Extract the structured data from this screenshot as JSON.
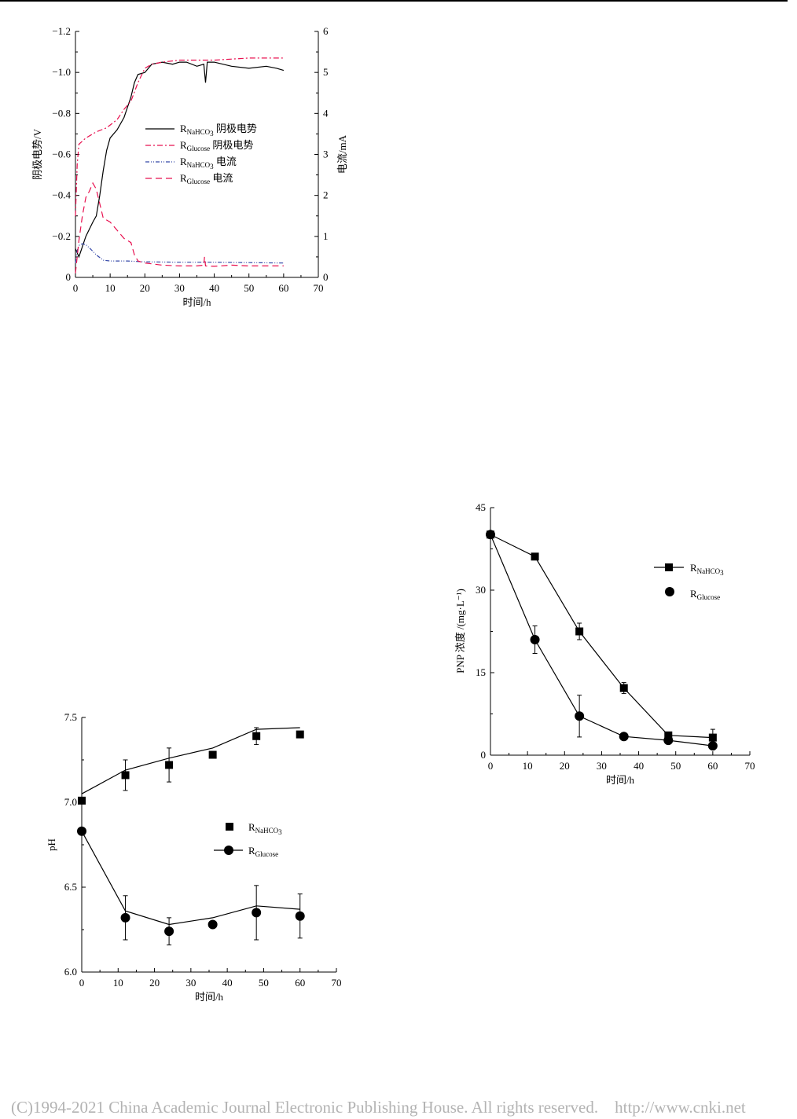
{
  "footer": {
    "copyright": "(C)1994-2021 China Academic Journal Electronic Publishing House. All rights reserved.",
    "url": "http://www.cnki.net"
  },
  "chart_data": [
    {
      "id": "potential_current",
      "type": "line",
      "xlabel": "时间/h",
      "ylabel_left": "阴极电势/V",
      "ylabel_right": "电流/mA",
      "xlim": [
        0,
        70
      ],
      "ylim_left": [
        0,
        -1.2
      ],
      "ylim_right": [
        0,
        6
      ],
      "xticks": [
        "0",
        "10",
        "20",
        "30",
        "40",
        "50",
        "60",
        "70"
      ],
      "yticks_left": [
        "0",
        "−0.2",
        "−0.4",
        "−0.6",
        "−0.8",
        "−1.0",
        "−1.2"
      ],
      "yticks_right": [
        "0",
        "1",
        "2",
        "3",
        "4",
        "5",
        "6"
      ],
      "legend_position": "center-right",
      "series": [
        {
          "name": "RNaHCO3 阴极电势",
          "legend_main": "R",
          "legend_sub": "NaHCO",
          "legend_sub2": "3",
          "legend_tail": " 阴极电势",
          "axis": "left",
          "color": "#000000",
          "dash": "",
          "x": [
            0,
            1,
            3,
            5,
            6,
            7,
            8,
            9,
            10,
            12,
            14,
            16,
            17,
            18,
            20,
            22,
            25,
            28,
            30,
            32,
            35,
            37,
            37.5,
            38,
            40,
            45,
            50,
            55,
            58,
            60
          ],
          "y": [
            -0.14,
            -0.1,
            -0.2,
            -0.27,
            -0.3,
            -0.4,
            -0.52,
            -0.62,
            -0.68,
            -0.72,
            -0.78,
            -0.88,
            -0.95,
            -0.99,
            -1.0,
            -1.04,
            -1.05,
            -1.04,
            -1.05,
            -1.05,
            -1.03,
            -1.04,
            -0.95,
            -1.05,
            -1.05,
            -1.03,
            -1.02,
            -1.03,
            -1.02,
            -1.01
          ]
        },
        {
          "name": "RGlucose 阴极电势",
          "legend_main": "R",
          "legend_sub": "Glucose",
          "legend_sub2": "",
          "legend_tail": " 阴极电势",
          "axis": "left",
          "color": "#e8104f",
          "dash": "7 3 2 3",
          "x": [
            0,
            0.5,
            1,
            3,
            6,
            9,
            12,
            14,
            16,
            18,
            20,
            22,
            25,
            30,
            40,
            50,
            60
          ],
          "y": [
            -0.3,
            -0.55,
            -0.65,
            -0.68,
            -0.71,
            -0.73,
            -0.77,
            -0.82,
            -0.86,
            -0.95,
            -1.02,
            -1.04,
            -1.05,
            -1.06,
            -1.06,
            -1.07,
            -1.07
          ]
        },
        {
          "name": "RNaHCO3 电流",
          "legend_main": "R",
          "legend_sub": "NaHCO",
          "legend_sub2": "3",
          "legend_tail": " 电流",
          "axis": "right",
          "color": "#3347a8",
          "dash": "5 2 1 2 1 2",
          "x": [
            0,
            0.5,
            1,
            2,
            3,
            4,
            6,
            8,
            10,
            15,
            20,
            30,
            40,
            50,
            60
          ],
          "y": [
            0.35,
            0.65,
            0.78,
            0.82,
            0.8,
            0.72,
            0.55,
            0.42,
            0.4,
            0.4,
            0.38,
            0.37,
            0.37,
            0.36,
            0.35
          ]
        },
        {
          "name": "RGlucose 电流",
          "legend_main": "R",
          "legend_sub": "Glucose",
          "legend_sub2": "",
          "legend_tail": " 电流",
          "axis": "right",
          "color": "#e8104f",
          "dash": "8 5",
          "x": [
            0,
            1,
            2,
            3,
            4,
            5,
            6,
            7,
            8,
            10,
            12,
            14,
            16,
            17,
            18,
            20,
            25,
            30,
            35,
            37,
            37.2,
            37.5,
            40,
            45,
            50,
            60
          ],
          "y": [
            0.1,
            0.9,
            1.5,
            1.95,
            2.1,
            2.3,
            2.15,
            1.8,
            1.45,
            1.35,
            1.15,
            0.95,
            0.85,
            0.55,
            0.4,
            0.35,
            0.3,
            0.28,
            0.28,
            0.3,
            0.5,
            0.28,
            0.27,
            0.3,
            0.28,
            0.28
          ]
        }
      ]
    },
    {
      "id": "ph",
      "type": "line",
      "xlabel": "时间/h",
      "ylabel": "pH",
      "xlim": [
        0,
        70
      ],
      "ylim": [
        6.0,
        7.5
      ],
      "xticks": [
        "0",
        "10",
        "20",
        "30",
        "40",
        "50",
        "60",
        "70"
      ],
      "yticks": [
        "6.0",
        "6.5",
        "7.0",
        "7.5"
      ],
      "legend_position": "center-right",
      "series": [
        {
          "name": "RNaHCO3",
          "legend_main": "R",
          "legend_sub": "NaHCO",
          "legend_sub2": "3",
          "marker": "square",
          "x": [
            0,
            12,
            24,
            36,
            48,
            60
          ],
          "y": [
            7.01,
            7.16,
            7.22,
            7.28,
            7.39,
            7.4
          ],
          "err": [
            0.01,
            0.09,
            0.1,
            0.02,
            0.05,
            0.01
          ],
          "fit_x": [
            0,
            12,
            24,
            36,
            48,
            60
          ],
          "fit_y": [
            7.05,
            7.19,
            7.26,
            7.32,
            7.43,
            7.44
          ]
        },
        {
          "name": "RGlucose",
          "legend_main": "R",
          "legend_sub": "Glucose",
          "legend_sub2": "",
          "marker": "circle",
          "x": [
            0,
            12,
            24,
            36,
            48,
            60
          ],
          "y": [
            6.83,
            6.32,
            6.24,
            6.28,
            6.35,
            6.33
          ],
          "err": [
            0.0,
            0.13,
            0.08,
            0.02,
            0.16,
            0.13
          ],
          "fit_x": [
            0,
            12,
            24,
            36,
            48,
            60
          ],
          "fit_y": [
            6.83,
            6.36,
            6.28,
            6.32,
            6.39,
            6.37
          ]
        }
      ]
    },
    {
      "id": "pnp",
      "type": "line",
      "xlabel": "时间/h",
      "ylabel": "PNP 浓度 /(mg·L⁻¹)",
      "xlim": [
        0,
        70
      ],
      "ylim": [
        0,
        45
      ],
      "xticks": [
        "0",
        "10",
        "20",
        "30",
        "40",
        "50",
        "60",
        "70"
      ],
      "yticks": [
        "0",
        "15",
        "30",
        "45"
      ],
      "legend_position": "top-right",
      "series": [
        {
          "name": "RNaHCO3",
          "legend_main": "R",
          "legend_sub": "NaHCO",
          "legend_sub2": "3",
          "marker": "square",
          "x": [
            0,
            12,
            24,
            36,
            48,
            60
          ],
          "y": [
            40.1,
            36.1,
            22.5,
            12.2,
            3.6,
            3.2
          ],
          "err": [
            0.5,
            0.3,
            1.5,
            1.0,
            0.5,
            1.5
          ]
        },
        {
          "name": "RGlucose",
          "legend_main": "R",
          "legend_sub": "Glucose",
          "legend_sub2": "",
          "marker": "circle",
          "x": [
            0,
            12,
            24,
            36,
            48,
            60
          ],
          "y": [
            40.1,
            21.0,
            7.1,
            3.4,
            2.7,
            1.7
          ],
          "err": [
            0.5,
            2.5,
            3.8,
            0.5,
            0.3,
            0.3
          ]
        }
      ]
    }
  ]
}
